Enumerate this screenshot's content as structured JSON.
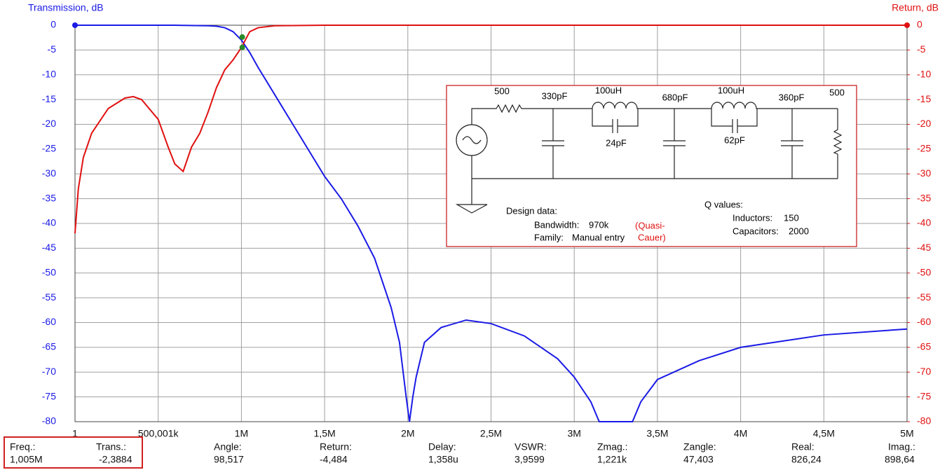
{
  "chart_data": {
    "type": "line",
    "ylabel": "Transmission, dB",
    "y2label": "Return, dB",
    "xlim": [
      1,
      5000000
    ],
    "xticks": [
      1,
      {
        "value": 500001,
        "label": "500,001k"
      },
      {
        "value": 1000000,
        "label": "1M"
      },
      {
        "value": 1500000,
        "label": "1,5M"
      },
      {
        "value": 2000000,
        "label": "2M"
      },
      {
        "value": 2500000,
        "label": "2,5M"
      },
      {
        "value": 3000000,
        "label": "3M"
      },
      {
        "value": 3500000,
        "label": "3,5M"
      },
      {
        "value": 4000000,
        "label": "4M"
      },
      {
        "value": 4500000,
        "label": "4,5M"
      },
      {
        "value": 5000000,
        "label": "5M"
      }
    ],
    "ylim": [
      -80,
      0
    ],
    "yticks": [
      0,
      -5,
      -10,
      -15,
      -20,
      -25,
      -30,
      -35,
      -40,
      -45,
      -50,
      -55,
      -60,
      -65,
      -70,
      -75,
      -80
    ],
    "y2lim": [
      -80,
      0
    ],
    "y2ticks": [
      0,
      -5,
      -10,
      -15,
      -20,
      -25,
      -30,
      -35,
      -40,
      -45,
      -50,
      -55,
      -60,
      -65,
      -70,
      -75,
      -80
    ],
    "grid": true,
    "series": [
      {
        "color": "#1a1ae6",
        "axis": "y",
        "x": [
          1,
          200000,
          400000,
          600000,
          800000,
          850000,
          900000,
          950000,
          1000000,
          1050000,
          1100000,
          1200000,
          1300000,
          1400000,
          1500000,
          1600000,
          1700000,
          1800000,
          1900000,
          1950000,
          1990000,
          2010000,
          2030000,
          2050000,
          2100000,
          2200000,
          2350000,
          2500000,
          2700000,
          2900000,
          3000000,
          3100000,
          3150000,
          3350000,
          3400000,
          3500000,
          3750000,
          4000000,
          4500000,
          5000000
        ],
        "values": [
          0,
          0,
          0,
          0,
          -0.1,
          -0.2,
          -0.5,
          -1.3,
          -3,
          -5.5,
          -8.5,
          -14,
          -19.5,
          -25,
          -30.5,
          -35,
          -40.5,
          -47,
          -57,
          -64,
          -75,
          -80,
          -75,
          -71,
          -64,
          -61,
          -59.5,
          -60.2,
          -62.7,
          -67.3,
          -71,
          -76,
          -80,
          -80,
          -76,
          -71.5,
          -67.7,
          -65,
          -62.5,
          -61.3
        ]
      },
      {
        "color": "#e01010",
        "axis": "y2",
        "x": [
          1,
          20000,
          50000,
          100000,
          200000,
          300000,
          350000,
          400000,
          500000,
          560000,
          600000,
          650000,
          700000,
          750000,
          800000,
          850000,
          900000,
          950000,
          1000000,
          1050000,
          1100000,
          1200000,
          1500000,
          5000000
        ],
        "values": [
          -42,
          -33,
          -26.7,
          -21.8,
          -16.8,
          -14.7,
          -14.4,
          -15,
          -19,
          -24.6,
          -28,
          -29.5,
          -24.6,
          -21.8,
          -17.5,
          -12.6,
          -9,
          -7,
          -4.5,
          -1.3,
          -0.5,
          -0.1,
          0,
          0
        ]
      }
    ],
    "cursor": {
      "x": 1005000,
      "values": [
        -2.3884,
        -4.484
      ],
      "color": "#2a8a2a"
    }
  },
  "schematic": {
    "labels": [
      "500",
      "330pF",
      "100uH",
      "24pF",
      "680pF",
      "100uH",
      "62pF",
      "360pF",
      "500"
    ],
    "design_title": "Design data:",
    "bandwidth_label": "Bandwidth:",
    "bandwidth": "970k",
    "family_label": "Family:",
    "family": "Manual entry",
    "note": [
      "(Quasi-",
      "Cauer)"
    ],
    "q_title": "Q values:",
    "inductors_label": "Inductors:",
    "inductors": "150",
    "capacitors_label": "Capacitors:",
    "capacitors": "2000"
  },
  "readout": [
    {
      "label": "Freq.:",
      "value": "1,005M"
    },
    {
      "label": "Trans.:",
      "value": "-2,3884"
    },
    {
      "label": "Angle:",
      "value": "98,517"
    },
    {
      "label": "Return:",
      "value": "-4,484"
    },
    {
      "label": "Delay:",
      "value": "1,358u"
    },
    {
      "label": "VSWR:",
      "value": "3,9599"
    },
    {
      "label": "Zmag.:",
      "value": "1,221k"
    },
    {
      "label": "Zangle:",
      "value": "47,403"
    },
    {
      "label": "Real:",
      "value": "826,24"
    },
    {
      "label": "Imag.:",
      "value": "898,64"
    }
  ]
}
